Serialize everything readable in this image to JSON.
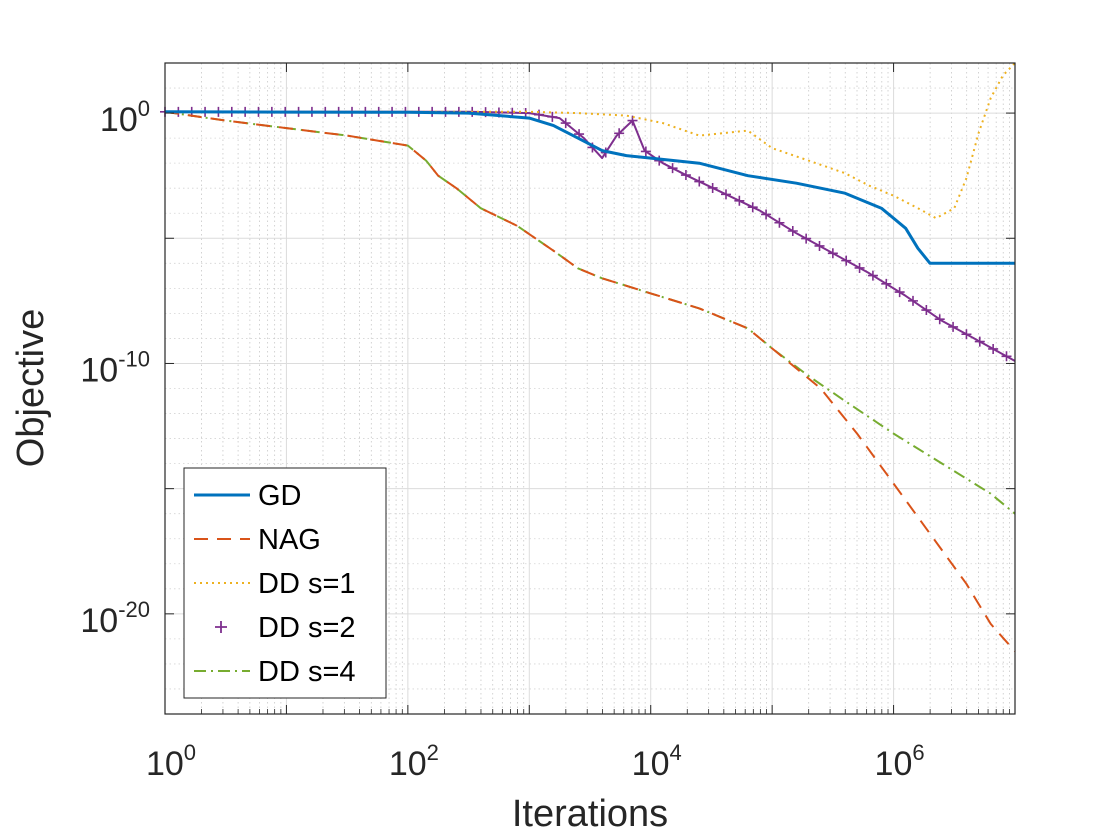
{
  "chart_data": {
    "type": "line",
    "title": "",
    "xlabel": "Iterations",
    "ylabel": "Objective",
    "xscale": "log",
    "yscale": "log",
    "xlim_exp": [
      0,
      7
    ],
    "ylim_exp": [
      -24,
      2
    ],
    "x_ticks": [
      {
        "base": "10",
        "exp": "0",
        "value": 0
      },
      {
        "base": "10",
        "exp": "2",
        "value": 2
      },
      {
        "base": "10",
        "exp": "4",
        "value": 4
      },
      {
        "base": "10",
        "exp": "6",
        "value": 6
      }
    ],
    "y_ticks": [
      {
        "base": "10",
        "exp": "0",
        "value": 0
      },
      {
        "base": "10",
        "exp": "-10",
        "value": -10
      },
      {
        "base": "10",
        "exp": "-20",
        "value": -20
      }
    ],
    "grid": true,
    "legend_position": "bottom-left",
    "series": [
      {
        "name": "GD",
        "color": "#0072BD",
        "style": "solid",
        "log10_x": [
          0,
          1,
          2,
          2.5,
          3,
          3.2,
          3.4,
          3.6,
          3.8,
          4.0,
          4.4,
          4.8,
          5.2,
          5.6,
          5.9,
          6.1,
          6.2,
          6.3,
          6.38,
          6.48,
          6.6,
          7.0
        ],
        "log10_y": [
          0.05,
          0.04,
          0.03,
          0.0,
          -0.2,
          -0.5,
          -1.0,
          -1.5,
          -1.7,
          -1.8,
          -2.0,
          -2.5,
          -2.8,
          -3.2,
          -3.8,
          -4.6,
          -5.4,
          -6.0,
          -6.0,
          -6.0,
          -6.0,
          -6.0
        ]
      },
      {
        "name": "NAG",
        "color": "#D95319",
        "style": "dashed",
        "log10_x": [
          0,
          0.5,
          1,
          1.5,
          2,
          2.15,
          2.25,
          2.4,
          2.6,
          2.9,
          3.2,
          3.4,
          3.6,
          3.8,
          4.0,
          4.4,
          4.8,
          5.0,
          5.4,
          5.7,
          6.0,
          6.3,
          6.6,
          6.8,
          7.0
        ],
        "log10_y": [
          0.05,
          -0.3,
          -0.6,
          -0.9,
          -1.3,
          -1.9,
          -2.5,
          -3.0,
          -3.8,
          -4.5,
          -5.5,
          -6.2,
          -6.6,
          -6.9,
          -7.2,
          -7.8,
          -8.6,
          -9.4,
          -11.0,
          -12.8,
          -14.8,
          -16.8,
          -18.8,
          -20.4,
          -21.5
        ]
      },
      {
        "name": "DD s=1",
        "color": "#EDB120",
        "style": "dotted",
        "log10_x": [
          0,
          1,
          2,
          3,
          3.4,
          3.8,
          4.1,
          4.4,
          4.6,
          4.8,
          5.0,
          5.3,
          5.6,
          5.8,
          6.0,
          6.2,
          6.35,
          6.5,
          6.6,
          6.7,
          6.8,
          6.9,
          7.0
        ],
        "log10_y": [
          0.05,
          0.05,
          0.05,
          0.05,
          0.0,
          -0.1,
          -0.4,
          -0.9,
          -0.8,
          -0.7,
          -1.4,
          -1.9,
          -2.4,
          -2.9,
          -3.3,
          -3.8,
          -4.2,
          -3.8,
          -2.6,
          -0.8,
          0.6,
          1.5,
          2.0
        ]
      },
      {
        "name": "DD s=2",
        "color": "#7E2F8E",
        "style": "plus",
        "log10_x": [
          0,
          1,
          2,
          2.5,
          3,
          3.25,
          3.45,
          3.6,
          3.72,
          3.85,
          3.95,
          4.1,
          4.3,
          4.6,
          4.9,
          5.2,
          5.5,
          5.8,
          6.1,
          6.4,
          6.7,
          7.0
        ],
        "log10_y": [
          0.05,
          0.05,
          0.05,
          0.05,
          0.0,
          -0.2,
          -1.0,
          -1.8,
          -0.9,
          -0.3,
          -1.5,
          -2.0,
          -2.5,
          -3.2,
          -3.9,
          -4.8,
          -5.6,
          -6.4,
          -7.3,
          -8.3,
          -9.1,
          -9.9
        ]
      },
      {
        "name": "DD s=4",
        "color": "#77AC30",
        "style": "dashdot",
        "log10_x": [
          0,
          0.5,
          1,
          1.5,
          2,
          2.15,
          2.25,
          2.4,
          2.6,
          2.9,
          3.2,
          3.4,
          3.6,
          3.8,
          4.0,
          4.4,
          4.8,
          5.0,
          5.3,
          5.6,
          6.0,
          6.4,
          6.8,
          7.0
        ],
        "log10_y": [
          0.05,
          -0.3,
          -0.6,
          -0.9,
          -1.3,
          -1.9,
          -2.5,
          -3.0,
          -3.8,
          -4.5,
          -5.5,
          -6.2,
          -6.6,
          -6.9,
          -7.2,
          -7.8,
          -8.6,
          -9.4,
          -10.5,
          -11.5,
          -12.8,
          -14.0,
          -15.2,
          -16.0
        ]
      }
    ]
  }
}
